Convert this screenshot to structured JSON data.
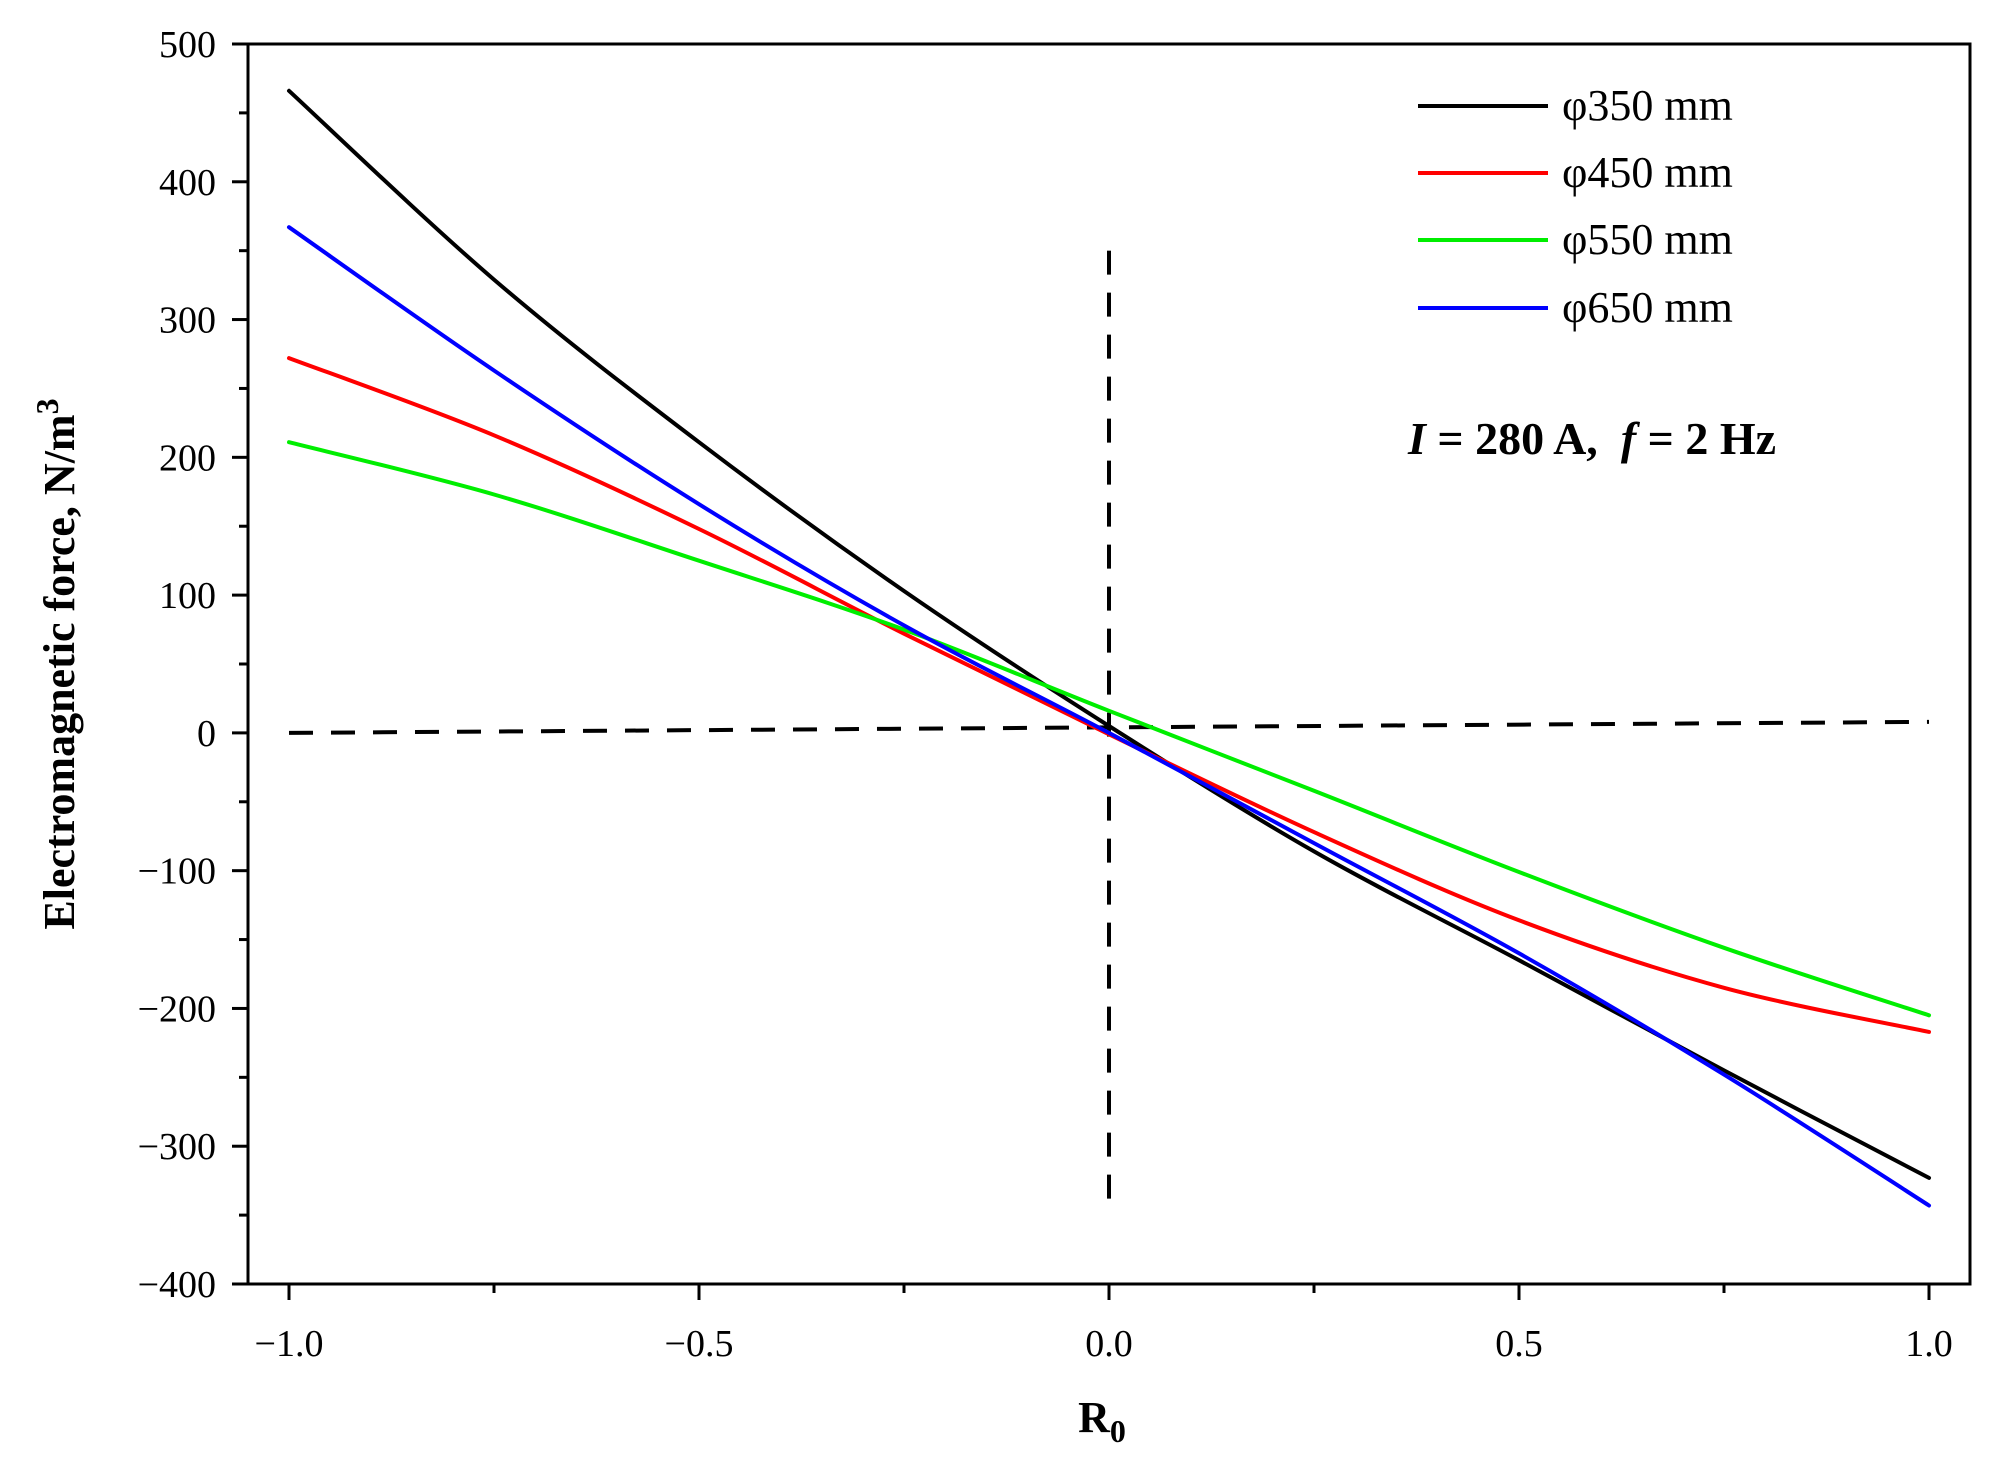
{
  "chart_data": {
    "type": "line",
    "xlabel": "R",
    "xlabel_subscript": "0",
    "ylabel": "Electromagnetic force, N/m",
    "ylabel_superscript": "3",
    "xlim": [
      -1.05,
      1.05
    ],
    "ylim": [
      -400,
      500
    ],
    "xticks": [
      -1.0,
      -0.5,
      0.0,
      0.5,
      1.0
    ],
    "xtick_labels": [
      "−1.0",
      "−0.5",
      "0.0",
      "0.5",
      "1.0"
    ],
    "yticks": [
      500,
      400,
      300,
      200,
      100,
      0,
      -100,
      -200,
      -300,
      -400
    ],
    "ytick_labels": [
      "500",
      "400",
      "300",
      "200",
      "100",
      "0",
      "−100",
      "−200",
      "−300",
      "−400"
    ],
    "annotation": {
      "I_symbol": "I",
      "I_text": " = 280 A,  ",
      "f_symbol": "f",
      "f_text": " = 2 Hz"
    },
    "legend_position": "top-right",
    "x": [
      -1.0,
      -0.75,
      -0.5,
      -0.25,
      0.0,
      0.25,
      0.5,
      0.75,
      1.0
    ],
    "series": [
      {
        "name": "φ350 mm",
        "color": "#000000",
        "values": [
          466,
          329,
          211,
          103,
          5,
          -86,
          -165,
          -245,
          -323
        ]
      },
      {
        "name": "φ450 mm",
        "color": "#ff0000",
        "values": [
          272,
          216,
          148,
          72,
          -1,
          -72,
          -136,
          -185,
          -217
        ]
      },
      {
        "name": "φ550 mm",
        "color": "#00ee00",
        "values": [
          211,
          173,
          125,
          75,
          16,
          -42,
          -101,
          -156,
          -205
        ]
      },
      {
        "name": "φ650 mm",
        "color": "#0000ff",
        "values": [
          367,
          263,
          166,
          78,
          0,
          -80,
          -160,
          -248,
          -343
        ]
      }
    ],
    "reference_lines": [
      {
        "name": "horizontal-dashed",
        "x": [
          -1.0,
          1.0
        ],
        "y": [
          0,
          8
        ]
      },
      {
        "name": "vertical-dashed",
        "x": [
          0.0,
          0.0
        ],
        "y": [
          350,
          -350
        ]
      }
    ]
  }
}
